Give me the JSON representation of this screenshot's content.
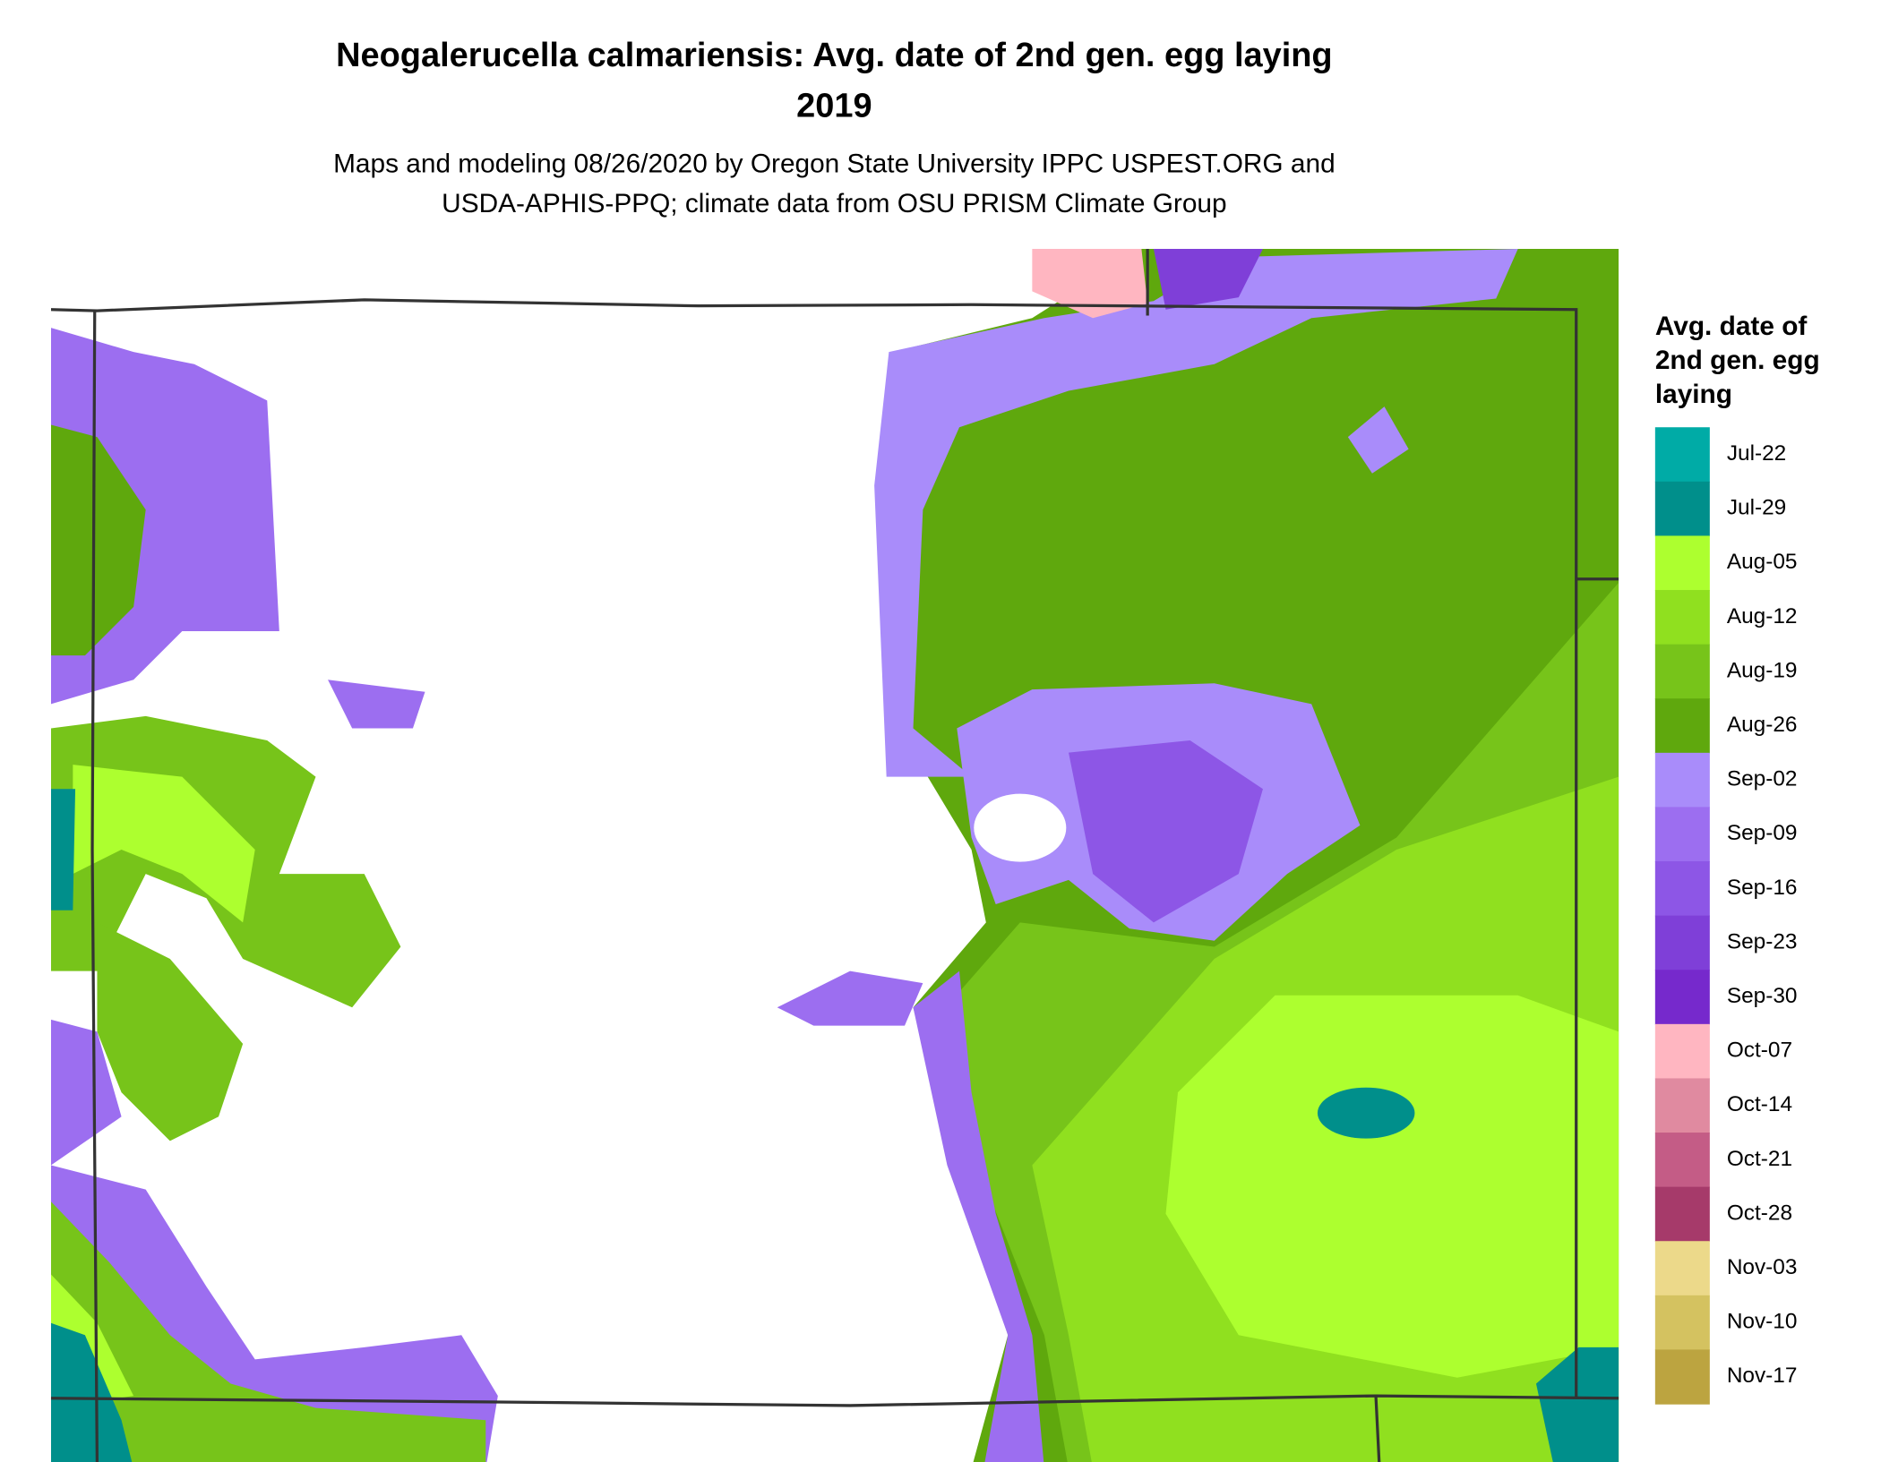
{
  "title_lines": [
    "Neogalerucella calmariensis: Avg. date of 2nd gen. egg laying",
    "2019"
  ],
  "subtitle_lines": [
    "Maps and modeling 08/26/2020 by Oregon State University IPPC USPEST.ORG and",
    "USDA-APHIS-PPQ; climate data from OSU PRISM Climate Group"
  ],
  "legend": {
    "title_lines": [
      "Avg. date of",
      "2nd gen. egg",
      "laying"
    ],
    "items": [
      {
        "label": "Jul-22",
        "color": "#00aba6"
      },
      {
        "label": "Jul-29",
        "color": "#008f8b"
      },
      {
        "label": "Aug-05",
        "color": "#adff2f"
      },
      {
        "label": "Aug-12",
        "color": "#90e01f"
      },
      {
        "label": "Aug-19",
        "color": "#77c41a"
      },
      {
        "label": "Aug-26",
        "color": "#5fa80d"
      },
      {
        "label": "Sep-02",
        "color": "#a98cfa"
      },
      {
        "label": "Sep-09",
        "color": "#9c6ef0"
      },
      {
        "label": "Sep-16",
        "color": "#8d56e6"
      },
      {
        "label": "Sep-23",
        "color": "#7f3fd8"
      },
      {
        "label": "Sep-30",
        "color": "#7629cc"
      },
      {
        "label": "Oct-07",
        "color": "#ffb6c1"
      },
      {
        "label": "Oct-14",
        "color": "#e08aa0"
      },
      {
        "label": "Oct-21",
        "color": "#c45c86"
      },
      {
        "label": "Oct-28",
        "color": "#a63a6a"
      },
      {
        "label": "Nov-03",
        "color": "#ecd98a"
      },
      {
        "label": "Nov-10",
        "color": "#d4c260"
      },
      {
        "label": "Nov-17",
        "color": "#bca440"
      }
    ]
  }
}
